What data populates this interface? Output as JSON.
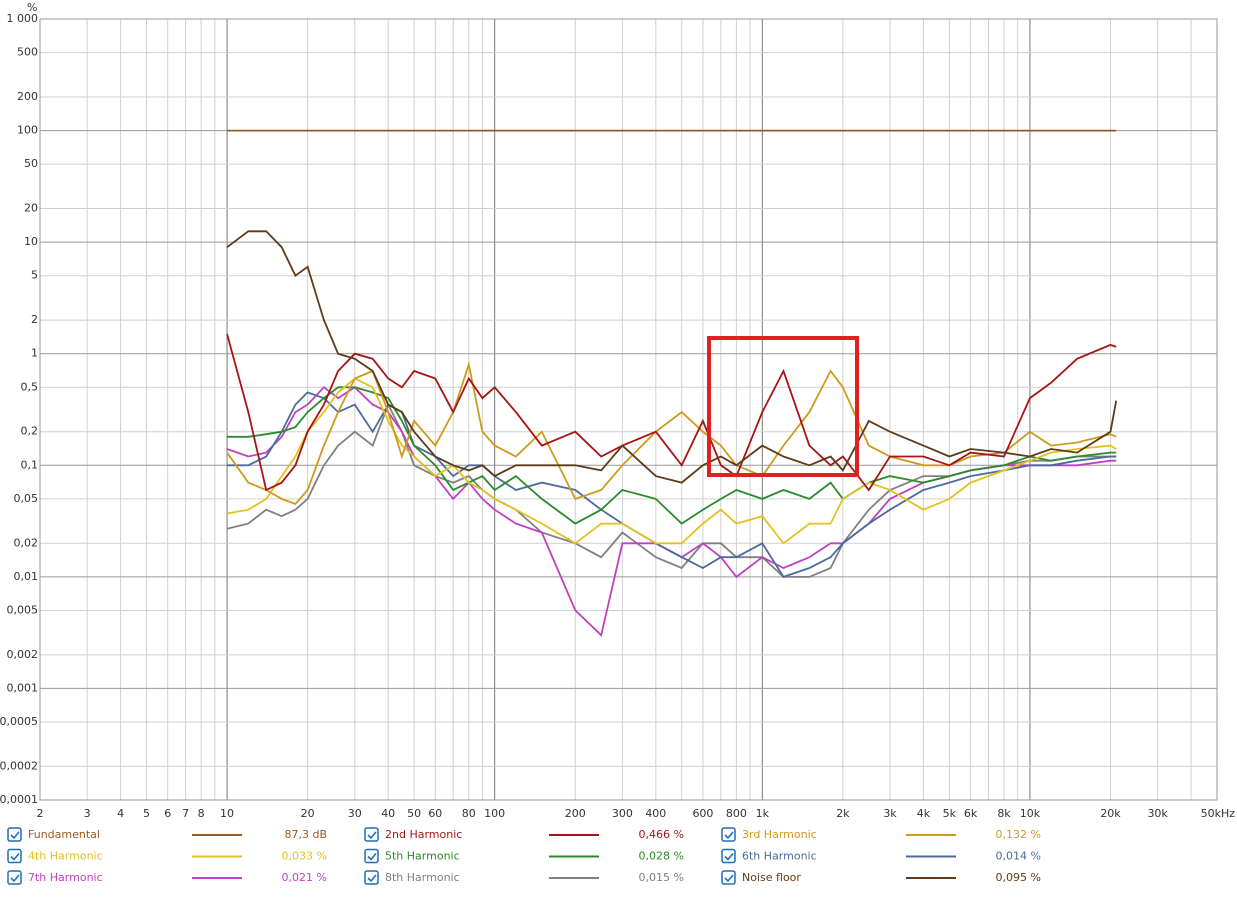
{
  "chart_data": {
    "type": "line",
    "xscale": "log",
    "yscale": "log",
    "y_label": "%",
    "grid": true,
    "xlim": [
      2,
      50000
    ],
    "ylim": [
      0.0001,
      1000
    ],
    "xticks": [
      2,
      3,
      4,
      5,
      6,
      7,
      8,
      {
        "value": 9,
        "label": null
      },
      10,
      20,
      30,
      40,
      50,
      60,
      {
        "value": 70,
        "label": null
      },
      80,
      {
        "value": 90,
        "label": null
      },
      100,
      200,
      300,
      400,
      {
        "value": 500,
        "label": null
      },
      600,
      {
        "value": 700,
        "label": null
      },
      800,
      {
        "value": 900,
        "label": null
      },
      {
        "value": 1000,
        "label": "1k"
      },
      {
        "value": 2000,
        "label": "2k"
      },
      {
        "value": 3000,
        "label": "3k"
      },
      {
        "value": 4000,
        "label": "4k"
      },
      {
        "value": 5000,
        "label": "5k"
      },
      {
        "value": 6000,
        "label": "6k"
      },
      {
        "value": 7000,
        "label": null
      },
      {
        "value": 8000,
        "label": "8k"
      },
      {
        "value": 9000,
        "label": null
      },
      {
        "value": 10000,
        "label": "10k"
      },
      {
        "value": 20000,
        "label": "20k"
      },
      {
        "value": 30000,
        "label": "30k"
      },
      {
        "value": 40000,
        "label": null
      },
      {
        "value": 50000,
        "label": "50kHz"
      }
    ],
    "yticks": [
      {
        "value": 1000,
        "label": "1 000"
      },
      500,
      200,
      100,
      50,
      20,
      10,
      5,
      2,
      1,
      {
        "value": 0.5,
        "label": "0,5"
      },
      {
        "value": 0.2,
        "label": "0,2"
      },
      {
        "value": 0.1,
        "label": "0,1"
      },
      {
        "value": 0.05,
        "label": "0,05"
      },
      {
        "value": 0.02,
        "label": "0,02"
      },
      {
        "value": 0.01,
        "label": "0,01"
      },
      {
        "value": 0.005,
        "label": "0,005"
      },
      {
        "value": 0.002,
        "label": "0,002"
      },
      {
        "value": 0.001,
        "label": "0,001"
      },
      {
        "value": 0.0005,
        "label": "0,0005"
      },
      {
        "value": 0.0002,
        "label": "0,0002"
      },
      {
        "value": 0.0001,
        "label": "0,0001"
      }
    ],
    "x": [
      10,
      12,
      14,
      16,
      18,
      20,
      23,
      26,
      30,
      35,
      40,
      45,
      50,
      60,
      70,
      80,
      90,
      100,
      120,
      150,
      200,
      250,
      300,
      400,
      500,
      600,
      700,
      800,
      1000,
      1200,
      1500,
      1800,
      2000,
      2500,
      3000,
      4000,
      5000,
      6000,
      8000,
      10000,
      12000,
      15000,
      20000,
      21000
    ],
    "series": [
      {
        "name": "Fundamental",
        "color": "#9a5a22",
        "legend_value": "87,3 dB",
        "values": [
          100,
          100,
          100,
          100,
          100,
          100,
          100,
          100,
          100,
          100,
          100,
          100,
          100,
          100,
          100,
          100,
          100,
          100,
          100,
          100,
          100,
          100,
          100,
          100,
          100,
          100,
          100,
          100,
          100,
          100,
          100,
          100,
          100,
          100,
          100,
          100,
          100,
          100,
          100,
          100,
          100,
          100,
          100,
          100
        ]
      },
      {
        "name": "2nd Harmonic",
        "color": "#a51515",
        "legend_value": "0,466 %",
        "values": [
          1.5,
          0.3,
          0.06,
          0.07,
          0.1,
          0.2,
          0.35,
          0.7,
          1.0,
          0.9,
          0.6,
          0.5,
          0.7,
          0.6,
          0.3,
          0.6,
          0.4,
          0.5,
          0.3,
          0.15,
          0.2,
          0.12,
          0.15,
          0.2,
          0.1,
          0.25,
          0.1,
          0.08,
          0.3,
          0.7,
          0.15,
          0.1,
          0.12,
          0.06,
          0.12,
          0.12,
          0.1,
          0.13,
          0.12,
          0.4,
          0.55,
          0.9,
          1.2,
          1.15
        ]
      },
      {
        "name": "3rd Harmonic",
        "color": "#cf9a1c",
        "legend_value": "0,132 %",
        "values": [
          0.13,
          0.07,
          0.06,
          0.05,
          0.045,
          0.06,
          0.15,
          0.3,
          0.6,
          0.7,
          0.3,
          0.12,
          0.25,
          0.15,
          0.3,
          0.8,
          0.2,
          0.15,
          0.12,
          0.2,
          0.05,
          0.06,
          0.1,
          0.2,
          0.3,
          0.2,
          0.15,
          0.1,
          0.08,
          0.15,
          0.3,
          0.7,
          0.5,
          0.15,
          0.12,
          0.1,
          0.1,
          0.12,
          0.13,
          0.2,
          0.15,
          0.16,
          0.19,
          0.18
        ]
      },
      {
        "name": "4th Harmonic",
        "color": "#e2c21e",
        "legend_value": "0,033 %",
        "values": [
          0.037,
          0.04,
          0.05,
          0.08,
          0.12,
          0.2,
          0.3,
          0.45,
          0.6,
          0.5,
          0.25,
          0.15,
          0.12,
          0.08,
          0.1,
          0.07,
          0.06,
          0.05,
          0.04,
          0.03,
          0.02,
          0.03,
          0.03,
          0.02,
          0.02,
          0.03,
          0.04,
          0.03,
          0.035,
          0.02,
          0.03,
          0.03,
          0.05,
          0.07,
          0.06,
          0.04,
          0.05,
          0.07,
          0.09,
          0.11,
          0.13,
          0.14,
          0.15,
          0.14
        ]
      },
      {
        "name": "5th Harmonic",
        "color": "#2b8a2b",
        "legend_value": "0,028 %",
        "values": [
          0.18,
          0.18,
          0.19,
          0.2,
          0.22,
          0.3,
          0.4,
          0.5,
          0.5,
          0.45,
          0.4,
          0.25,
          0.15,
          0.1,
          0.06,
          0.07,
          0.08,
          0.06,
          0.08,
          0.05,
          0.03,
          0.04,
          0.06,
          0.05,
          0.03,
          0.04,
          0.05,
          0.06,
          0.05,
          0.06,
          0.05,
          0.07,
          0.05,
          0.07,
          0.08,
          0.07,
          0.08,
          0.09,
          0.1,
          0.12,
          0.11,
          0.12,
          0.13,
          0.13
        ]
      },
      {
        "name": "6th Harmonic",
        "color": "#4a6b9b",
        "legend_value": "0,014 %",
        "values": [
          0.1,
          0.1,
          0.12,
          0.2,
          0.35,
          0.45,
          0.4,
          0.3,
          0.35,
          0.2,
          0.35,
          0.3,
          0.15,
          0.12,
          0.08,
          0.1,
          0.1,
          0.08,
          0.06,
          0.07,
          0.06,
          0.04,
          0.03,
          0.02,
          0.015,
          0.012,
          0.015,
          0.015,
          0.02,
          0.01,
          0.012,
          0.015,
          0.02,
          0.03,
          0.04,
          0.06,
          0.07,
          0.08,
          0.09,
          0.1,
          0.1,
          0.11,
          0.12,
          0.12
        ]
      },
      {
        "name": "7th Harmonic",
        "color": "#c23fc2",
        "legend_value": "0,021 %",
        "values": [
          0.14,
          0.12,
          0.13,
          0.18,
          0.3,
          0.35,
          0.5,
          0.4,
          0.5,
          0.35,
          0.3,
          0.2,
          0.12,
          0.08,
          0.05,
          0.07,
          0.05,
          0.04,
          0.03,
          0.025,
          0.005,
          0.003,
          0.02,
          0.02,
          0.015,
          0.02,
          0.015,
          0.01,
          0.015,
          0.012,
          0.015,
          0.02,
          0.02,
          0.03,
          0.05,
          0.07,
          0.08,
          0.09,
          0.1,
          0.1,
          0.1,
          0.1,
          0.11,
          0.11
        ]
      },
      {
        "name": "8th Harmonic",
        "color": "#808080",
        "legend_value": "0,015 %",
        "values": [
          0.027,
          0.03,
          0.04,
          0.035,
          0.04,
          0.05,
          0.1,
          0.15,
          0.2,
          0.15,
          0.35,
          0.2,
          0.1,
          0.08,
          0.07,
          0.08,
          0.06,
          0.05,
          0.04,
          0.025,
          0.02,
          0.015,
          0.025,
          0.015,
          0.012,
          0.02,
          0.02,
          0.015,
          0.015,
          0.01,
          0.01,
          0.012,
          0.02,
          0.04,
          0.06,
          0.08,
          0.08,
          0.09,
          0.1,
          0.11,
          0.11,
          0.12,
          0.12,
          0.12
        ]
      },
      {
        "name": "Noise floor",
        "color": "#5e3a17",
        "legend_value": "0,095 %",
        "values": [
          9,
          12.5,
          12.5,
          9,
          5,
          6,
          2,
          1,
          0.9,
          0.7,
          0.35,
          0.3,
          0.2,
          0.12,
          0.1,
          0.09,
          0.1,
          0.08,
          0.1,
          0.1,
          0.1,
          0.09,
          0.15,
          0.08,
          0.07,
          0.1,
          0.12,
          0.1,
          0.15,
          0.12,
          0.1,
          0.12,
          0.09,
          0.25,
          0.2,
          0.15,
          0.12,
          0.14,
          0.13,
          0.12,
          0.14,
          0.13,
          0.2,
          0.38
        ]
      }
    ]
  }
}
